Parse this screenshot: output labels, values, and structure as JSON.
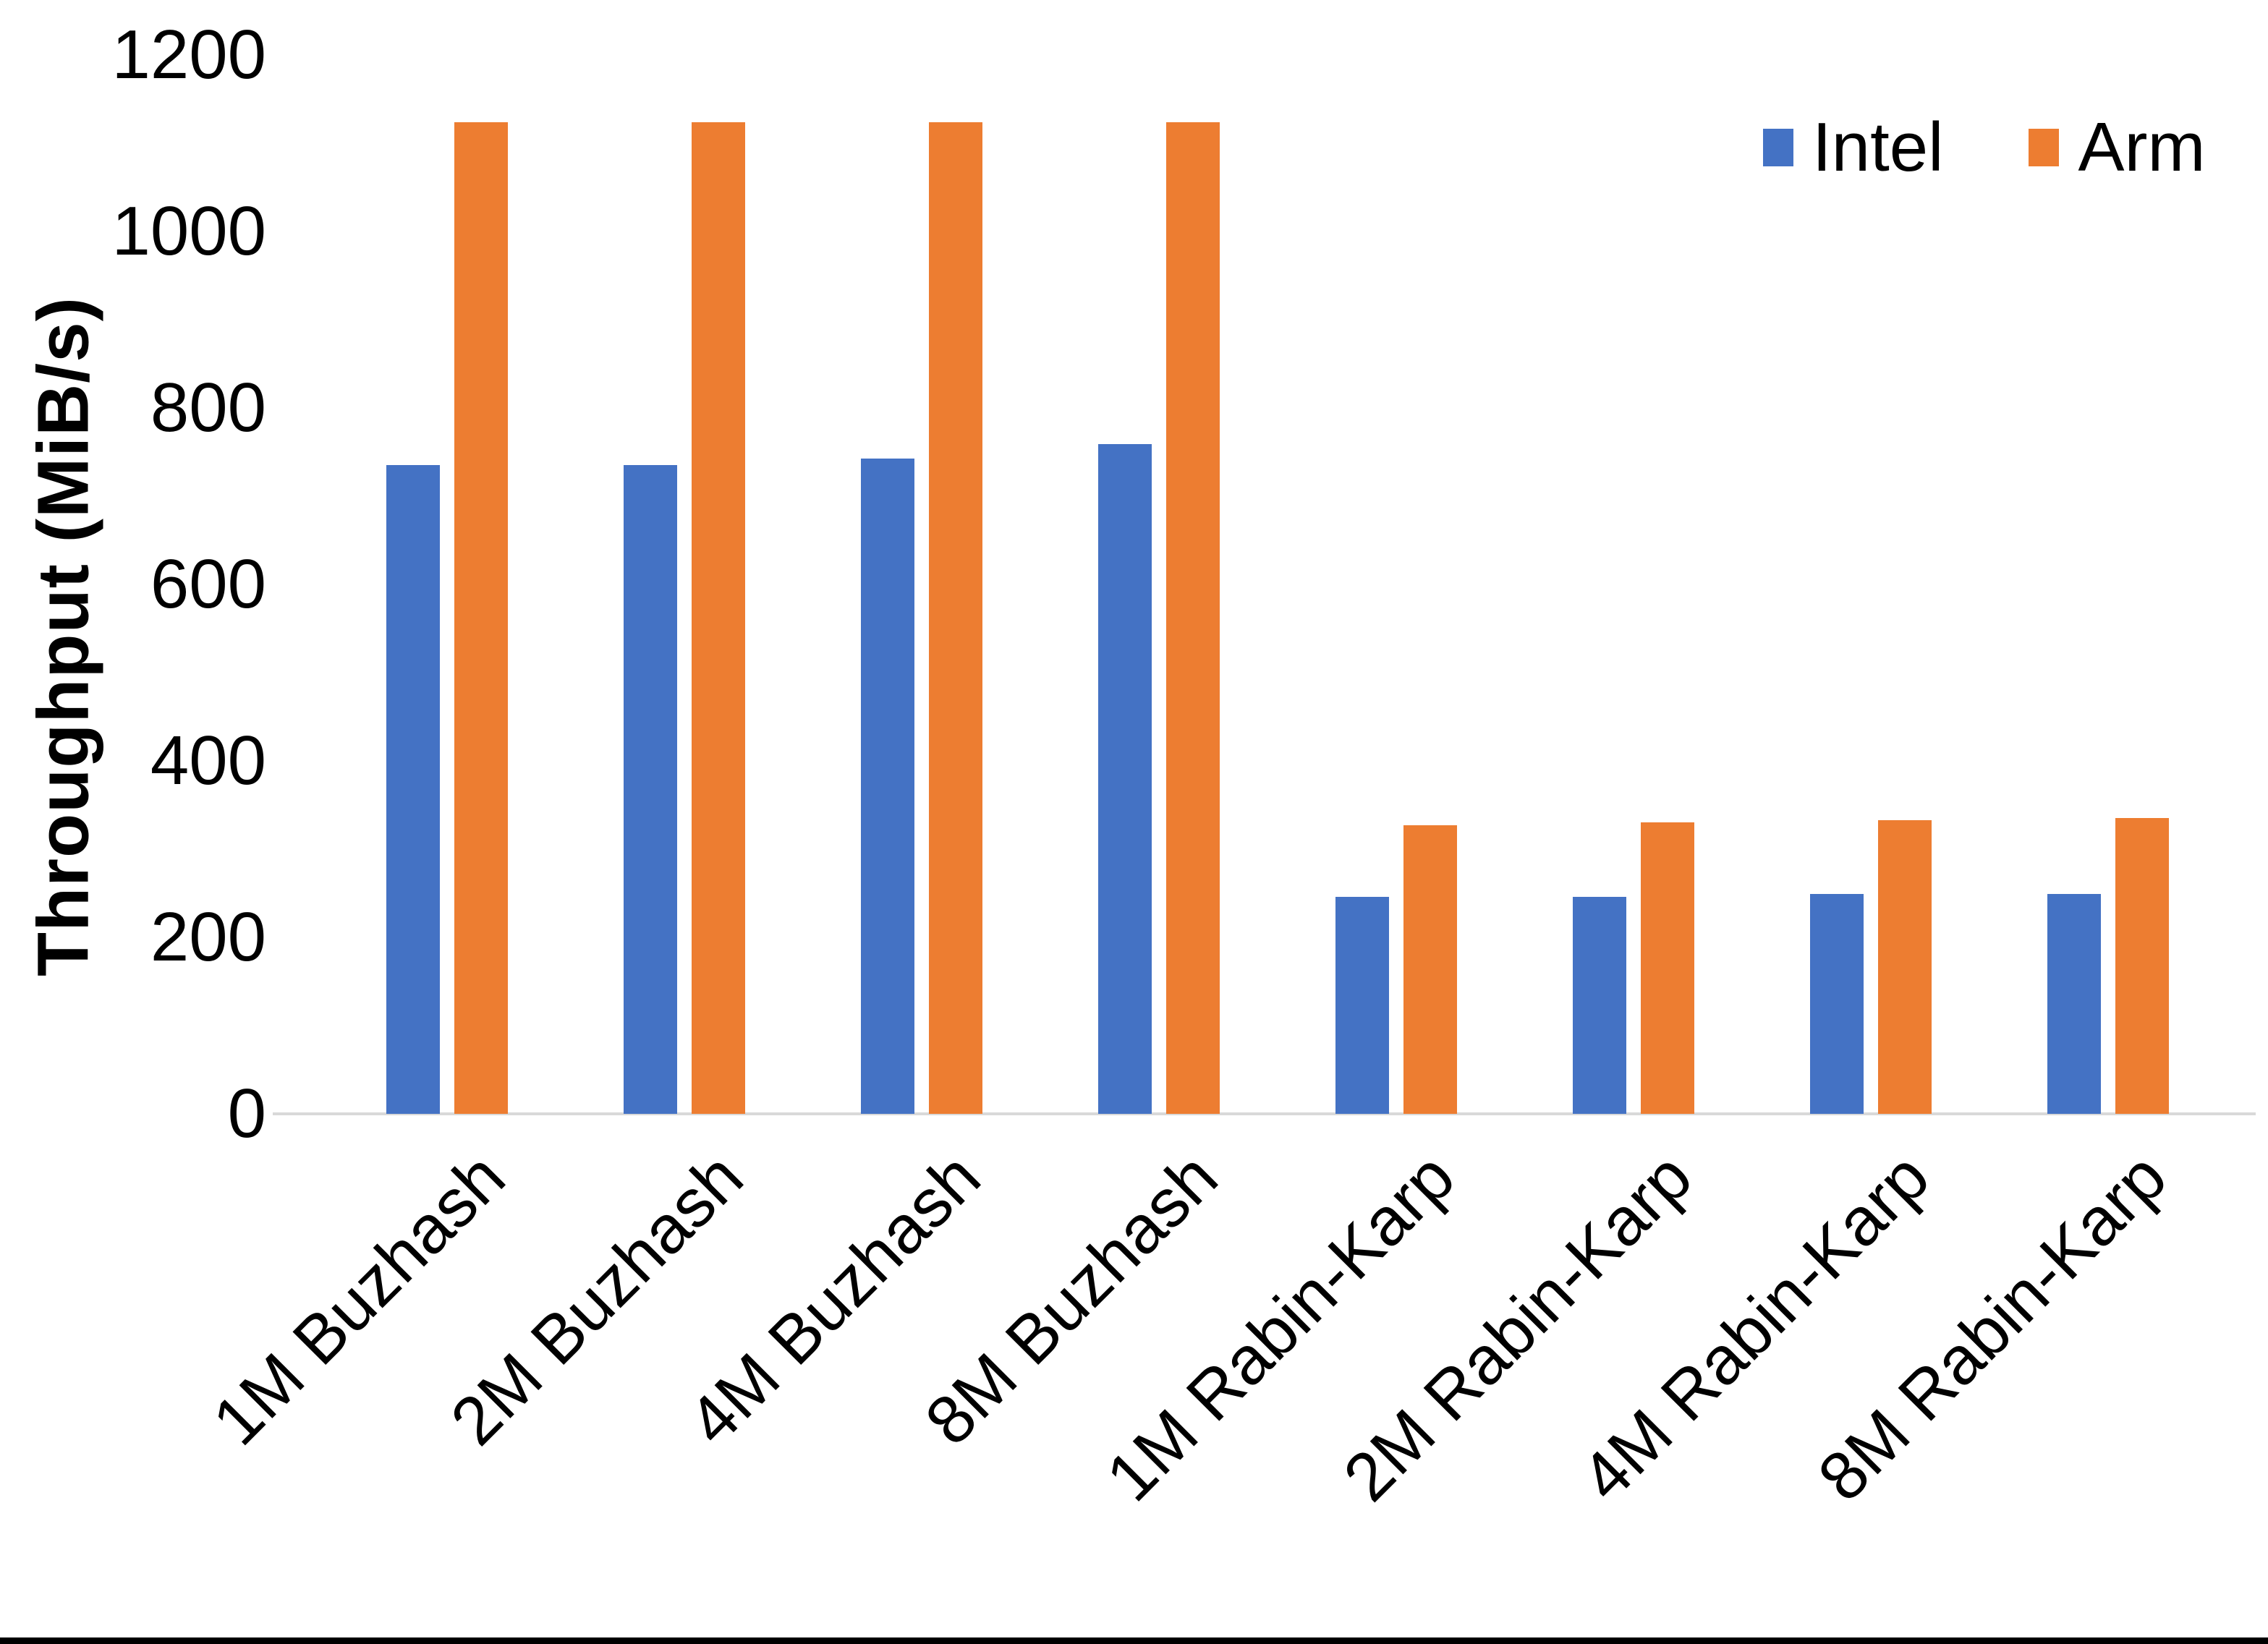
{
  "chart_data": {
    "type": "bar",
    "categories": [
      "1M Buzhash",
      "2M Buzhash",
      "4M Buzhash",
      "8M Buzhash",
      "1M Rabin-Karp",
      "2M Rabin-Karp",
      "4M Rabin-Karp",
      "8M Rabin-Karp"
    ],
    "series": [
      {
        "name": "Intel",
        "color": "#4472C4",
        "values": [
          735,
          735,
          743,
          759,
          246,
          246,
          249,
          249
        ]
      },
      {
        "name": "Arm",
        "color": "#ED7D31",
        "values": [
          1124,
          1124,
          1124,
          1124,
          327,
          330,
          333,
          335
        ]
      }
    ],
    "title": "",
    "xlabel": "",
    "ylabel": "Throughput (MiB/s)",
    "ylim": [
      0,
      1200
    ],
    "yticks": [
      0,
      200,
      400,
      600,
      800,
      1000,
      1200
    ],
    "grid": false,
    "legend_position": "top-right",
    "axis_line_color": "#D9D9D9",
    "text_color": "#000000",
    "background_color": "#FFFFFF"
  }
}
